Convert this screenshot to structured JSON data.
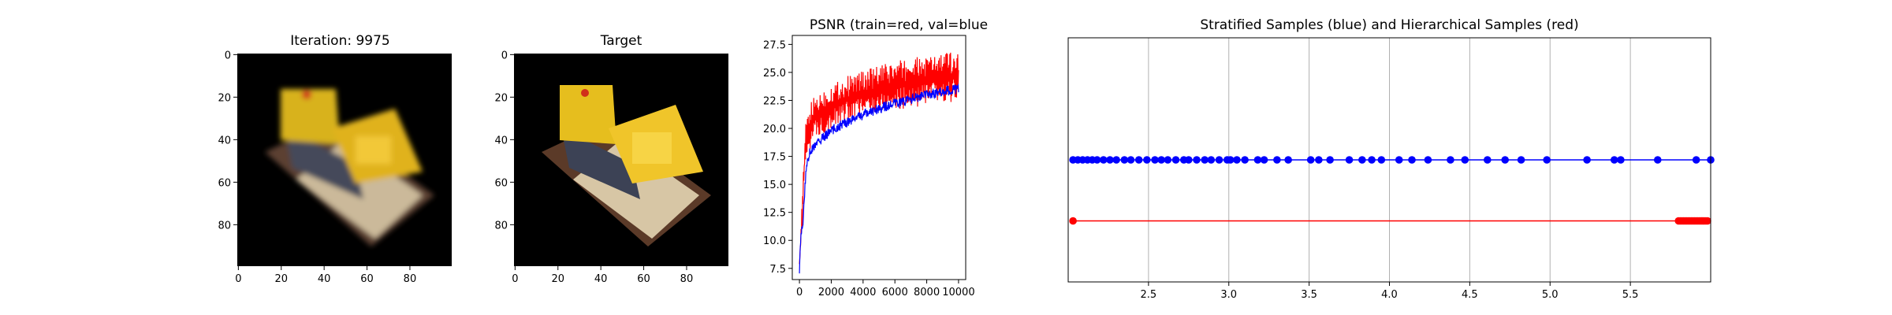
{
  "panels": {
    "pred": {
      "title": "Iteration: 9975"
    },
    "target": {
      "title": "Target"
    },
    "psnr": {
      "title": "PSNR (train=red, val=blue"
    },
    "samples": {
      "title": "Stratified  Samples (blue) and Hierarchical Samples (red)"
    }
  },
  "image_axes": {
    "xticks": [
      "0",
      "20",
      "40",
      "60",
      "80"
    ],
    "yticks": [
      "0",
      "20",
      "40",
      "60",
      "80"
    ],
    "xlim": [
      -0.5,
      99.5
    ],
    "ylim": [
      -0.5,
      99.5
    ]
  },
  "colors": {
    "train": "#ff0000",
    "val": "#0000ff",
    "grid": "#b0b0b0"
  },
  "chart_data": [
    {
      "type": "line",
      "title": "PSNR (train=red, val=blue",
      "xlim": [
        -450,
        10450
      ],
      "ylim": [
        6.5,
        28.3
      ],
      "xticks": [
        0,
        2000,
        4000,
        6000,
        8000,
        10000
      ],
      "yticks": [
        "7.5",
        "10.0",
        "12.5",
        "15.0",
        "17.5",
        "20.0",
        "22.5",
        "25.0",
        "27.5"
      ],
      "series": [
        {
          "name": "train",
          "color": "#ff0000",
          "x": [
            0,
            100,
            200,
            300,
            400,
            600,
            800,
            1000,
            1500,
            2000,
            3000,
            4000,
            5000,
            6000,
            7000,
            8000,
            9000,
            10000
          ],
          "low": [
            7.5,
            9.8,
            11.5,
            15.5,
            17.0,
            18.0,
            18.5,
            19.0,
            19.5,
            20.0,
            20.5,
            21.0,
            21.3,
            21.6,
            21.8,
            22.0,
            22.2,
            22.4
          ],
          "high": [
            8.2,
            11.5,
            15.0,
            17.3,
            20.5,
            22.0,
            22.5,
            23.0,
            23.5,
            24.0,
            24.7,
            25.2,
            25.6,
            26.0,
            26.3,
            26.5,
            26.8,
            27.0
          ]
        },
        {
          "name": "val",
          "color": "#0000ff",
          "x": [
            0,
            100,
            200,
            300,
            400,
            500,
            700,
            1000,
            1500,
            2000,
            3000,
            4000,
            5000,
            6000,
            7000,
            8000,
            9000,
            10000
          ],
          "y": [
            7.5,
            10.5,
            11.2,
            13.5,
            16.0,
            17.2,
            18.0,
            18.5,
            19.2,
            19.8,
            20.6,
            21.2,
            21.8,
            22.2,
            22.6,
            23.0,
            23.3,
            23.5
          ]
        }
      ]
    },
    {
      "type": "scatter",
      "title": "Stratified  Samples (blue) and Hierarchical Samples (red)",
      "xlim": [
        2.0,
        6.0
      ],
      "ylim": [
        -1.0,
        1.0
      ],
      "xticks": [
        "2.5",
        "3.0",
        "3.5",
        "4.0",
        "4.5",
        "5.0",
        "5.5"
      ],
      "grid": true,
      "series": [
        {
          "name": "stratified",
          "color": "#0000ff",
          "y": 0,
          "x": [
            2.03,
            2.06,
            2.09,
            2.12,
            2.15,
            2.18,
            2.22,
            2.26,
            2.3,
            2.35,
            2.39,
            2.44,
            2.49,
            2.54,
            2.58,
            2.62,
            2.67,
            2.72,
            2.75,
            2.8,
            2.85,
            2.89,
            2.94,
            2.99,
            3.01,
            3.05,
            3.1,
            3.18,
            3.22,
            3.3,
            3.37,
            3.51,
            3.56,
            3.63,
            3.75,
            3.83,
            3.89,
            3.95,
            4.06,
            4.14,
            4.24,
            4.38,
            4.47,
            4.61,
            4.72,
            4.82,
            4.98,
            5.23,
            5.4,
            5.44,
            5.67,
            5.91,
            6.0
          ]
        },
        {
          "name": "hierarchical",
          "color": "#ff0000",
          "y": -0.5,
          "x": [
            2.03,
            5.8,
            5.81,
            5.82,
            5.83,
            5.84,
            5.85,
            5.86,
            5.87,
            5.88,
            5.89,
            5.9,
            5.91,
            5.92,
            5.93,
            5.94,
            5.95,
            5.96,
            5.97,
            5.98
          ]
        }
      ]
    }
  ]
}
